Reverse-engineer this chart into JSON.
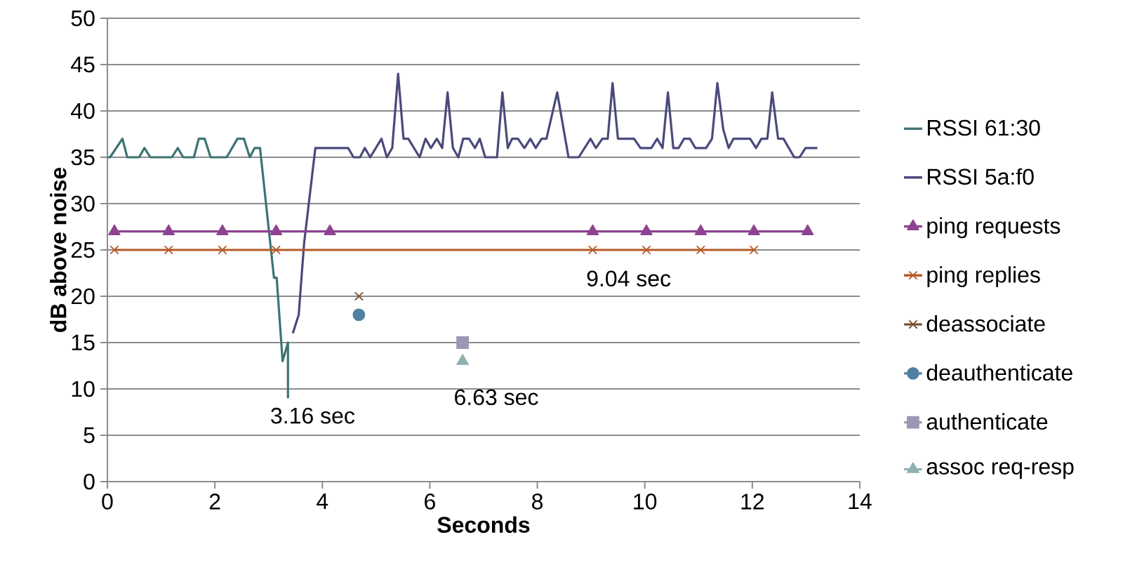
{
  "chart_data": {
    "type": "line",
    "xlabel": "Seconds",
    "ylabel": "dB above noise",
    "xlim": [
      0,
      14
    ],
    "xticks": [
      0,
      2,
      4,
      6,
      8,
      10,
      12,
      14
    ],
    "ylim": [
      0,
      50
    ],
    "yticks": [
      0,
      5,
      10,
      15,
      20,
      25,
      30,
      35,
      40,
      45,
      50
    ],
    "grid": "y",
    "legend": "right",
    "annotations": [
      "3.16 sec",
      "6.63 sec",
      "9.04 sec"
    ],
    "series": [
      {
        "name": "RSSI 61:30",
        "marker": "none",
        "color": "#3d7474",
        "x": [
          0,
          0.05,
          0.28,
          0.37,
          0.59,
          0.69,
          0.8,
          1.2,
          1.31,
          1.41,
          1.61,
          1.7,
          1.81,
          1.92,
          2.22,
          2.42,
          2.54,
          2.65,
          2.74,
          2.84,
          3.1,
          3.15,
          3.26,
          3.36,
          3.36
        ],
        "values": [
          35,
          35,
          37,
          35,
          35,
          36,
          35,
          35,
          36,
          35,
          35,
          37,
          37,
          35,
          35,
          37,
          37,
          35,
          36,
          36,
          22,
          22,
          13,
          15,
          9
        ]
      },
      {
        "name": "RSSI 5a:f0",
        "marker": "none",
        "color": "#4a4a7c",
        "x": [
          3.45,
          3.56,
          3.66,
          3.87,
          4.48,
          4.58,
          4.7,
          4.79,
          4.89,
          5.1,
          5.2,
          5.3,
          5.41,
          5.51,
          5.6,
          5.81,
          5.92,
          6.02,
          6.13,
          6.23,
          6.33,
          6.43,
          6.53,
          6.62,
          6.73,
          6.84,
          6.93,
          7.03,
          7.25,
          7.35,
          7.45,
          7.53,
          7.64,
          7.76,
          7.87,
          7.97,
          8.08,
          8.17,
          8.37,
          8.58,
          8.77,
          8.99,
          9.09,
          9.21,
          9.31,
          9.4,
          9.5,
          9.8,
          9.92,
          10.12,
          10.23,
          10.33,
          10.43,
          10.53,
          10.63,
          10.73,
          10.84,
          10.94,
          11.14,
          11.25,
          11.35,
          11.46,
          11.56,
          11.65,
          11.96,
          12.07,
          12.17,
          12.28,
          12.37,
          12.48,
          12.58,
          12.78,
          12.88,
          12.99,
          13.21
        ],
        "values": [
          16,
          18,
          25.7,
          36,
          36,
          35,
          35,
          36,
          35,
          37,
          35,
          36,
          44,
          37,
          37,
          35,
          37,
          36,
          37,
          36,
          42,
          36,
          35,
          37,
          37,
          36,
          37,
          35,
          35,
          42,
          36,
          37,
          37,
          36,
          37,
          36,
          37,
          37,
          42,
          35,
          35,
          37,
          36,
          37,
          37,
          43,
          37,
          37,
          36,
          36,
          37,
          36,
          42,
          36,
          36,
          37,
          37,
          36,
          36,
          37,
          43,
          38,
          36,
          37,
          37,
          36,
          37,
          37,
          42,
          37,
          37,
          35,
          35,
          36,
          36
        ]
      },
      {
        "name": "ping requests",
        "marker": "triangle",
        "color": "#8e4390",
        "x": [
          0.13,
          1.14,
          2.14,
          3.14,
          4.14,
          9.03,
          10.03,
          11.04,
          12.03,
          13.03
        ],
        "values": [
          27,
          27,
          27,
          27,
          27,
          27,
          27,
          27,
          27,
          27
        ]
      },
      {
        "name": "ping replies",
        "marker": "cross",
        "color": "#b45b28",
        "x": [
          0.13,
          1.14,
          2.14,
          3.14,
          9.03,
          10.03,
          11.04,
          12.03
        ],
        "values": [
          25,
          25,
          25,
          25,
          25,
          25,
          25,
          25
        ]
      },
      {
        "name": "deassociate",
        "type": "scatter",
        "marker": "cross",
        "color": "#7b4f2e",
        "x": [
          4.68
        ],
        "values": [
          20
        ]
      },
      {
        "name": "deauthenticate",
        "type": "scatter",
        "marker": "circle",
        "color": "#4f81a0",
        "x": [
          4.68
        ],
        "values": [
          18
        ]
      },
      {
        "name": "authenticate",
        "type": "scatter",
        "marker": "square",
        "color": "#9a98b4",
        "x": [
          6.61
        ],
        "values": [
          15
        ]
      },
      {
        "name": "assoc req-resp",
        "type": "scatter",
        "marker": "triangle",
        "color": "#8fb0b0",
        "x": [
          6.61
        ],
        "values": [
          13
        ]
      }
    ]
  }
}
